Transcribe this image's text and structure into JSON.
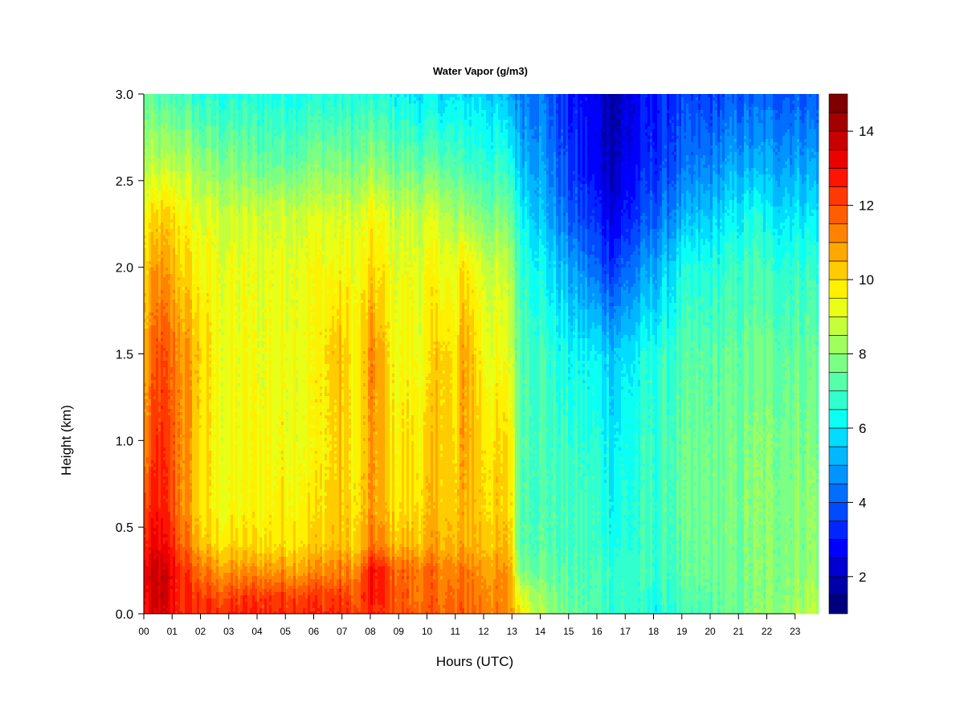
{
  "chart_data": {
    "type": "heatmap",
    "title": "Water Vapor (g/m3)",
    "xlabel": "Hours (UTC)",
    "ylabel": "Height (km)",
    "xlim": [
      0,
      24
    ],
    "ylim": [
      0.0,
      3.0
    ],
    "x_ticks": [
      "00",
      "01",
      "02",
      "03",
      "04",
      "05",
      "06",
      "07",
      "08",
      "09",
      "10",
      "11",
      "12",
      "13",
      "14",
      "15",
      "16",
      "17",
      "18",
      "19",
      "20",
      "21",
      "22",
      "23"
    ],
    "y_ticks": [
      "0.0",
      "0.5",
      "1.0",
      "1.5",
      "2.0",
      "2.5",
      "3.0"
    ],
    "colorbar": {
      "range": [
        1,
        15
      ],
      "ticks": [
        "2",
        "4",
        "6",
        "8",
        "10",
        "12",
        "14"
      ],
      "colors": [
        "#00007F",
        "#0000A8",
        "#0000D2",
        "#0000FF",
        "#0025FF",
        "#004AFF",
        "#006FFF",
        "#0094FF",
        "#00B8FF",
        "#00DDFF",
        "#0CFFF3",
        "#31FFCE",
        "#56FFA9",
        "#7BFF84",
        "#A0FF5F",
        "#C4FF3B",
        "#E9FF16",
        "#FFF100",
        "#FFCC00",
        "#FFA800",
        "#FF8300",
        "#FF5E00",
        "#FF3900",
        "#FF1400",
        "#ED0000",
        "#C80000",
        "#A30000",
        "#7F0000"
      ]
    },
    "heights_km": [
      0.0,
      0.1,
      0.25,
      0.4,
      0.6,
      1.0,
      1.5,
      2.0,
      2.3,
      2.6,
      3.0
    ],
    "profiles": [
      {
        "hour": 0.0,
        "values": [
          12.5,
          12.8,
          13.0,
          12.5,
          12.0,
          11.0,
          10.5,
          10.0,
          9.5,
          8.5,
          7.5
        ]
      },
      {
        "hour": 0.5,
        "values": [
          13.5,
          13.8,
          13.8,
          13.2,
          12.8,
          12.5,
          12.0,
          11.0,
          10.0,
          8.5,
          7.0
        ]
      },
      {
        "hour": 1.0,
        "values": [
          13.0,
          13.0,
          13.0,
          12.5,
          12.0,
          11.8,
          11.5,
          10.5,
          10.0,
          8.5,
          7.0
        ]
      },
      {
        "hour": 1.5,
        "values": [
          12.5,
          12.5,
          12.3,
          11.5,
          11.0,
          11.0,
          11.0,
          10.0,
          9.5,
          8.5,
          7.0
        ]
      },
      {
        "hour": 2.0,
        "values": [
          12.5,
          12.3,
          11.5,
          10.5,
          10.0,
          10.0,
          10.2,
          9.5,
          9.0,
          8.0,
          6.5
        ]
      },
      {
        "hour": 2.5,
        "values": [
          12.5,
          12.0,
          11.0,
          10.0,
          9.5,
          9.5,
          9.5,
          9.3,
          9.0,
          7.8,
          6.5
        ]
      },
      {
        "hour": 3.0,
        "values": [
          12.5,
          12.0,
          11.0,
          10.0,
          9.5,
          9.3,
          9.3,
          9.2,
          8.8,
          7.8,
          6.5
        ]
      },
      {
        "hour": 4.0,
        "values": [
          12.5,
          12.3,
          11.0,
          10.0,
          9.6,
          9.5,
          9.3,
          9.2,
          8.8,
          7.5,
          6.5
        ]
      },
      {
        "hour": 5.0,
        "values": [
          12.6,
          12.3,
          11.0,
          10.0,
          9.8,
          9.5,
          9.5,
          9.3,
          9.0,
          7.5,
          6.5
        ]
      },
      {
        "hour": 6.0,
        "values": [
          12.5,
          12.3,
          11.0,
          10.2,
          9.8,
          9.5,
          9.5,
          9.5,
          9.0,
          7.8,
          6.5
        ]
      },
      {
        "hour": 6.9,
        "values": [
          12.5,
          12.3,
          11.3,
          10.5,
          10.3,
          10.3,
          10.5,
          9.5,
          9.0,
          7.8,
          6.5
        ]
      },
      {
        "hour": 7.5,
        "values": [
          12.0,
          11.8,
          11.0,
          10.0,
          9.8,
          9.6,
          9.5,
          9.3,
          8.8,
          7.5,
          6.5
        ]
      },
      {
        "hour": 8.1,
        "values": [
          12.5,
          12.8,
          13.0,
          11.5,
          11.0,
          11.0,
          11.2,
          10.0,
          9.5,
          8.0,
          6.5
        ]
      },
      {
        "hour": 8.8,
        "values": [
          12.0,
          12.0,
          11.8,
          10.5,
          10.0,
          9.8,
          9.5,
          9.3,
          8.8,
          7.5,
          6.3
        ]
      },
      {
        "hour": 9.5,
        "values": [
          11.8,
          11.5,
          11.5,
          10.5,
          10.0,
          9.8,
          9.5,
          9.2,
          8.8,
          7.5,
          6.0
        ]
      },
      {
        "hour": 10.0,
        "values": [
          11.8,
          11.5,
          11.5,
          10.5,
          10.2,
          10.0,
          9.5,
          9.3,
          8.8,
          7.3,
          5.8
        ]
      },
      {
        "hour": 10.5,
        "values": [
          11.8,
          11.6,
          11.5,
          10.8,
          10.5,
          10.5,
          10.5,
          9.5,
          9.0,
          7.5,
          5.8
        ]
      },
      {
        "hour": 11.0,
        "values": [
          11.5,
          11.3,
          11.0,
          10.3,
          10.0,
          9.8,
          9.5,
          9.0,
          8.0,
          7.0,
          5.8
        ]
      },
      {
        "hour": 11.3,
        "values": [
          11.8,
          11.8,
          11.5,
          10.8,
          10.8,
          11.0,
          11.0,
          10.0,
          8.5,
          7.0,
          5.8
        ]
      },
      {
        "hour": 12.0,
        "values": [
          11.5,
          11.3,
          11.0,
          10.5,
          10.2,
          10.0,
          9.5,
          9.0,
          7.8,
          6.8,
          5.8
        ]
      },
      {
        "hour": 13.0,
        "values": [
          11.0,
          10.8,
          10.8,
          10.2,
          10.0,
          9.8,
          9.0,
          8.5,
          7.5,
          6.5,
          5.0
        ]
      },
      {
        "hour": 13.2,
        "values": [
          10.0,
          9.5,
          8.0,
          7.5,
          7.5,
          7.5,
          7.5,
          7.0,
          6.5,
          5.5,
          4.5
        ]
      },
      {
        "hour": 14.0,
        "values": [
          8.5,
          8.3,
          7.5,
          7.3,
          7.2,
          7.2,
          7.0,
          6.3,
          5.5,
          5.0,
          4.5
        ]
      },
      {
        "hour": 15.0,
        "values": [
          7.5,
          7.3,
          7.2,
          7.0,
          7.0,
          6.8,
          6.2,
          5.0,
          4.0,
          3.5,
          3.0
        ]
      },
      {
        "hour": 16.0,
        "values": [
          7.0,
          7.0,
          7.0,
          6.8,
          6.8,
          6.5,
          6.0,
          4.0,
          3.2,
          2.5,
          2.5
        ]
      },
      {
        "hour": 16.6,
        "values": [
          6.8,
          6.8,
          6.8,
          6.5,
          6.3,
          6.0,
          5.5,
          3.5,
          2.5,
          2.0,
          1.8
        ]
      },
      {
        "hour": 17.0,
        "values": [
          6.8,
          6.8,
          6.8,
          6.5,
          6.5,
          6.3,
          5.8,
          4.0,
          3.0,
          2.5,
          2.3
        ]
      },
      {
        "hour": 18.0,
        "values": [
          6.3,
          6.5,
          6.8,
          6.8,
          6.8,
          6.8,
          6.5,
          5.0,
          4.0,
          3.3,
          3.0
        ]
      },
      {
        "hour": 19.0,
        "values": [
          6.8,
          7.0,
          7.2,
          7.2,
          7.3,
          7.3,
          7.0,
          6.2,
          5.0,
          4.0,
          3.5
        ]
      },
      {
        "hour": 20.0,
        "values": [
          7.2,
          7.4,
          7.5,
          7.5,
          7.6,
          7.5,
          7.3,
          6.5,
          5.5,
          4.5,
          3.5
        ]
      },
      {
        "hour": 21.0,
        "values": [
          7.5,
          7.5,
          7.6,
          7.6,
          7.7,
          7.6,
          7.3,
          6.8,
          6.0,
          5.0,
          3.8
        ]
      },
      {
        "hour": 21.6,
        "values": [
          7.8,
          7.8,
          7.8,
          7.8,
          7.8,
          7.8,
          7.5,
          7.0,
          6.5,
          5.0,
          4.0
        ]
      },
      {
        "hour": 22.0,
        "values": [
          8.0,
          7.8,
          7.8,
          7.8,
          7.8,
          7.8,
          7.5,
          6.8,
          6.0,
          5.0,
          4.0
        ]
      },
      {
        "hour": 23.0,
        "values": [
          8.5,
          8.2,
          8.0,
          8.0,
          8.0,
          7.8,
          7.5,
          6.8,
          6.0,
          5.0,
          4.0
        ]
      },
      {
        "hour": 23.85,
        "values": [
          8.8,
          8.5,
          8.2,
          8.0,
          8.0,
          7.8,
          7.5,
          6.8,
          6.0,
          5.0,
          4.0
        ]
      }
    ]
  }
}
